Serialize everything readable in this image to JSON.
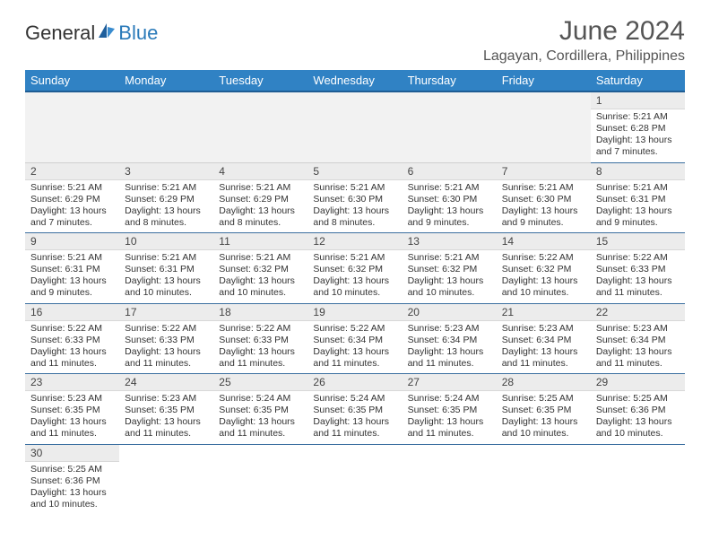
{
  "brand": {
    "part1": "General",
    "part2": "Blue"
  },
  "title": "June 2024",
  "location": "Lagayan, Cordillera, Philippines",
  "colors": {
    "header_bg": "#3082c4",
    "header_border": "#1f5d94",
    "row_divider": "#3b6fa0",
    "daynum_bg": "#ececec",
    "blank_bg": "#f2f2f2",
    "text": "#333333",
    "title_text": "#555555",
    "brand_blue": "#2a7ab9"
  },
  "days_of_week": [
    "Sunday",
    "Monday",
    "Tuesday",
    "Wednesday",
    "Thursday",
    "Friday",
    "Saturday"
  ],
  "weeks": [
    [
      null,
      null,
      null,
      null,
      null,
      null,
      {
        "n": "1",
        "sunrise": "5:21 AM",
        "sunset": "6:28 PM",
        "daylight": "13 hours and 7 minutes."
      }
    ],
    [
      {
        "n": "2",
        "sunrise": "5:21 AM",
        "sunset": "6:29 PM",
        "daylight": "13 hours and 7 minutes."
      },
      {
        "n": "3",
        "sunrise": "5:21 AM",
        "sunset": "6:29 PM",
        "daylight": "13 hours and 8 minutes."
      },
      {
        "n": "4",
        "sunrise": "5:21 AM",
        "sunset": "6:29 PM",
        "daylight": "13 hours and 8 minutes."
      },
      {
        "n": "5",
        "sunrise": "5:21 AM",
        "sunset": "6:30 PM",
        "daylight": "13 hours and 8 minutes."
      },
      {
        "n": "6",
        "sunrise": "5:21 AM",
        "sunset": "6:30 PM",
        "daylight": "13 hours and 9 minutes."
      },
      {
        "n": "7",
        "sunrise": "5:21 AM",
        "sunset": "6:30 PM",
        "daylight": "13 hours and 9 minutes."
      },
      {
        "n": "8",
        "sunrise": "5:21 AM",
        "sunset": "6:31 PM",
        "daylight": "13 hours and 9 minutes."
      }
    ],
    [
      {
        "n": "9",
        "sunrise": "5:21 AM",
        "sunset": "6:31 PM",
        "daylight": "13 hours and 9 minutes."
      },
      {
        "n": "10",
        "sunrise": "5:21 AM",
        "sunset": "6:31 PM",
        "daylight": "13 hours and 10 minutes."
      },
      {
        "n": "11",
        "sunrise": "5:21 AM",
        "sunset": "6:32 PM",
        "daylight": "13 hours and 10 minutes."
      },
      {
        "n": "12",
        "sunrise": "5:21 AM",
        "sunset": "6:32 PM",
        "daylight": "13 hours and 10 minutes."
      },
      {
        "n": "13",
        "sunrise": "5:21 AM",
        "sunset": "6:32 PM",
        "daylight": "13 hours and 10 minutes."
      },
      {
        "n": "14",
        "sunrise": "5:22 AM",
        "sunset": "6:32 PM",
        "daylight": "13 hours and 10 minutes."
      },
      {
        "n": "15",
        "sunrise": "5:22 AM",
        "sunset": "6:33 PM",
        "daylight": "13 hours and 11 minutes."
      }
    ],
    [
      {
        "n": "16",
        "sunrise": "5:22 AM",
        "sunset": "6:33 PM",
        "daylight": "13 hours and 11 minutes."
      },
      {
        "n": "17",
        "sunrise": "5:22 AM",
        "sunset": "6:33 PM",
        "daylight": "13 hours and 11 minutes."
      },
      {
        "n": "18",
        "sunrise": "5:22 AM",
        "sunset": "6:33 PM",
        "daylight": "13 hours and 11 minutes."
      },
      {
        "n": "19",
        "sunrise": "5:22 AM",
        "sunset": "6:34 PM",
        "daylight": "13 hours and 11 minutes."
      },
      {
        "n": "20",
        "sunrise": "5:23 AM",
        "sunset": "6:34 PM",
        "daylight": "13 hours and 11 minutes."
      },
      {
        "n": "21",
        "sunrise": "5:23 AM",
        "sunset": "6:34 PM",
        "daylight": "13 hours and 11 minutes."
      },
      {
        "n": "22",
        "sunrise": "5:23 AM",
        "sunset": "6:34 PM",
        "daylight": "13 hours and 11 minutes."
      }
    ],
    [
      {
        "n": "23",
        "sunrise": "5:23 AM",
        "sunset": "6:35 PM",
        "daylight": "13 hours and 11 minutes."
      },
      {
        "n": "24",
        "sunrise": "5:23 AM",
        "sunset": "6:35 PM",
        "daylight": "13 hours and 11 minutes."
      },
      {
        "n": "25",
        "sunrise": "5:24 AM",
        "sunset": "6:35 PM",
        "daylight": "13 hours and 11 minutes."
      },
      {
        "n": "26",
        "sunrise": "5:24 AM",
        "sunset": "6:35 PM",
        "daylight": "13 hours and 11 minutes."
      },
      {
        "n": "27",
        "sunrise": "5:24 AM",
        "sunset": "6:35 PM",
        "daylight": "13 hours and 11 minutes."
      },
      {
        "n": "28",
        "sunrise": "5:25 AM",
        "sunset": "6:35 PM",
        "daylight": "13 hours and 10 minutes."
      },
      {
        "n": "29",
        "sunrise": "5:25 AM",
        "sunset": "6:36 PM",
        "daylight": "13 hours and 10 minutes."
      }
    ],
    [
      {
        "n": "30",
        "sunrise": "5:25 AM",
        "sunset": "6:36 PM",
        "daylight": "13 hours and 10 minutes."
      },
      null,
      null,
      null,
      null,
      null,
      null
    ]
  ],
  "labels": {
    "sunrise": "Sunrise: ",
    "sunset": "Sunset: ",
    "daylight": "Daylight: "
  }
}
